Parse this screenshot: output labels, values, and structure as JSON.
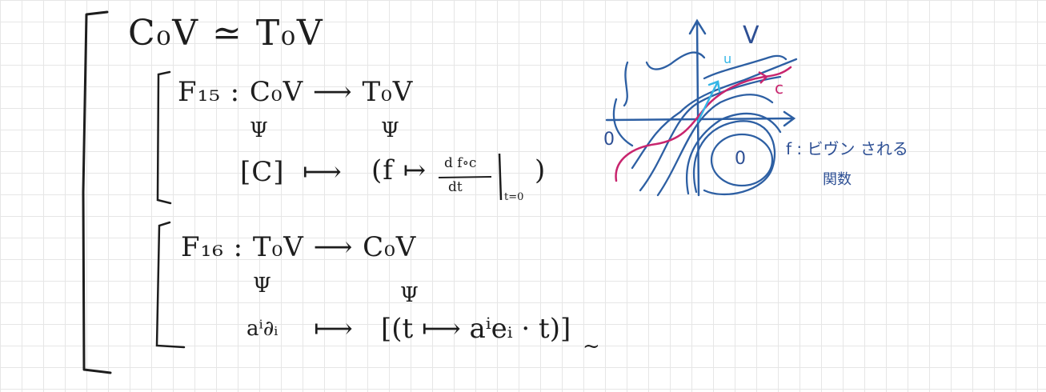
{
  "title_eq": "C₀V ≃ T₀V",
  "f15": {
    "def": "F₁₅ : C₀V ⟶ T₀V",
    "psi_left": "Ψ",
    "psi_right": "Ψ",
    "left": "[C]",
    "arrow": "⟼",
    "right_open": "(f ↦",
    "frac_num": "d f∘c",
    "frac_den": "dt",
    "sub": "t=0",
    "right_close": ")"
  },
  "f16": {
    "def": "F₁₆ : T₀V ⟶ C₀V",
    "psi_left": "Ψ",
    "psi_right": "Ψ",
    "left": "aⁱ∂ᵢ",
    "arrow": "⟼",
    "right": "[(t ⟼ aⁱeᵢ · t)]",
    "sub": "~"
  },
  "diagram": {
    "label_v": "V",
    "label_u": "u",
    "label_c": "c",
    "label_zero_left": "0",
    "label_zero_center": "0",
    "note_line1": "f : ビヴン される",
    "note_line2": "関数",
    "colors": {
      "ink": "#1d1d1d",
      "blue": "#2d5fa3",
      "cyan": "#35b6e6",
      "magenta": "#c8256e"
    }
  }
}
